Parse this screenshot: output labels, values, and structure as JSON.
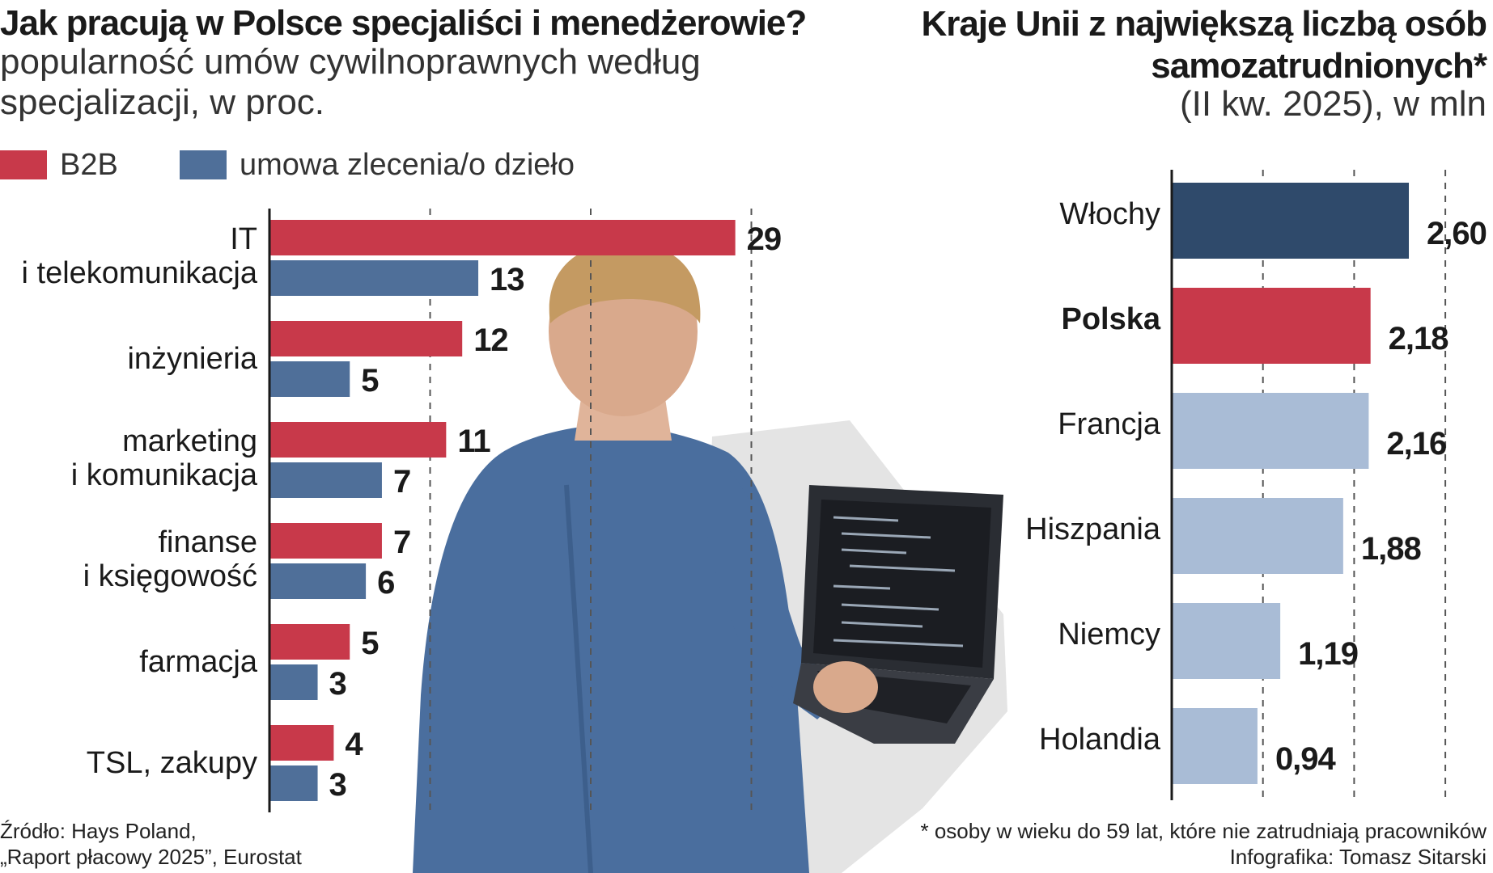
{
  "left_chart": {
    "title": "Jak pracują w Polsce specjaliści i menedżerowie?",
    "subtitle": "popularność umów cywilnoprawnych według specjalizacji, w proc.",
    "legend": [
      "B2B",
      "umowa zlecenia/o dzieło"
    ],
    "colors": {
      "b2b": "#c8394a",
      "zlecenie": "#4f6f99"
    }
  },
  "right_chart": {
    "title": "Kraje Unii z największą liczbą osób samozatrudnionych*",
    "subtitle": "(II kw. 2025), w mln",
    "colors": {
      "highlight": "#2f4a6b",
      "poland": "#c8394a",
      "others": "#a9bcd6"
    }
  },
  "chart_data": [
    {
      "type": "bar",
      "orientation": "horizontal",
      "title": "Jak pracują w Polsce specjaliści i menedżerowie?",
      "subtitle": "popularność umów cywilnoprawnych według specjalizacji, w proc.",
      "categories": [
        "IT i telekomunikacja",
        "inżynieria",
        "marketing i komunikacja",
        "finanse i księgowość",
        "farmacja",
        "TSL, zakupy"
      ],
      "series": [
        {
          "name": "B2B",
          "values": [
            29,
            12,
            11,
            7,
            5,
            4
          ]
        },
        {
          "name": "umowa zlecenia/o dzieło",
          "values": [
            13,
            5,
            7,
            6,
            3,
            3
          ]
        }
      ],
      "xlim": [
        0,
        30
      ],
      "grid": true,
      "legend": "top-left"
    },
    {
      "type": "bar",
      "orientation": "horizontal",
      "title": "Kraje Unii z największą liczbą osób samozatrudnionych*",
      "subtitle": "(II kw. 2025), w mln",
      "categories": [
        "Włochy",
        "Polska",
        "Francja",
        "Hiszpania",
        "Niemcy",
        "Holandia"
      ],
      "values": [
        2.6,
        2.18,
        2.16,
        1.88,
        1.19,
        0.94
      ],
      "value_labels": [
        "2,60",
        "2,18",
        "2,16",
        "1,88",
        "1,19",
        "0,94"
      ],
      "xlim": [
        0,
        3
      ],
      "grid": true
    }
  ],
  "footer": {
    "source_line1": "Źródło: Hays Poland,",
    "source_line2": "„Raport płacowy 2025”, Eurostat",
    "note": "* osoby w wieku do 59 lat, które nie zatrudniają pracowników",
    "credit": "Infografika: Tomasz Sitarski"
  }
}
